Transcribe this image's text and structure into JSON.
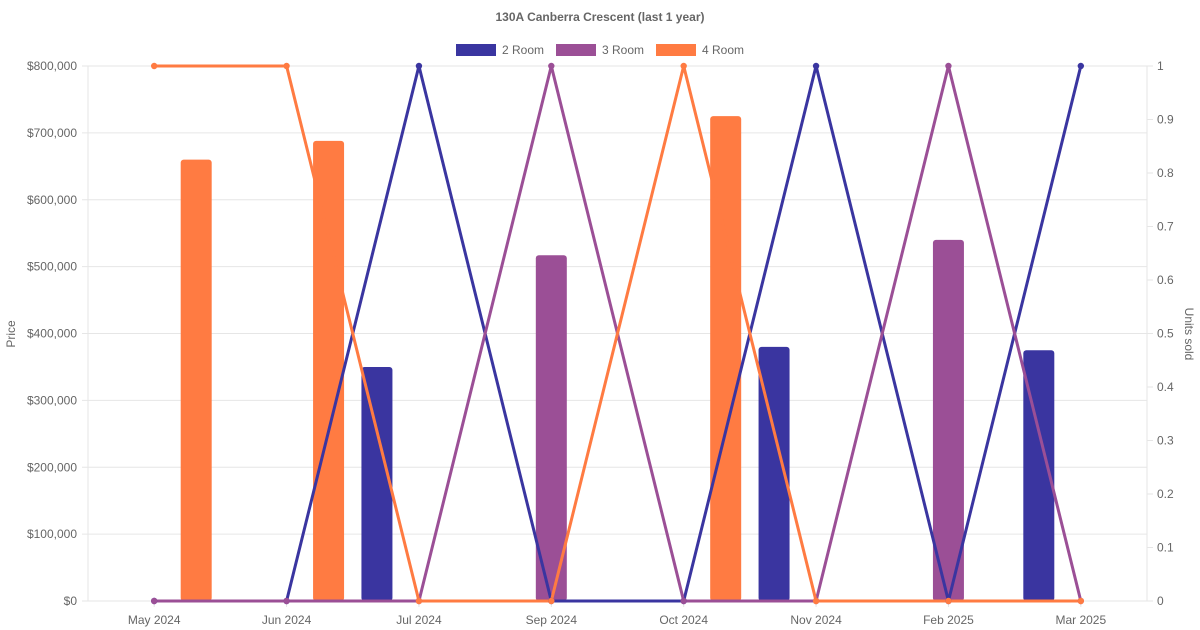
{
  "chart_data": {
    "type": "bar",
    "title": "130A Canberra Crescent (last 1 year)",
    "categories": [
      "May 2024",
      "Jun 2024",
      "Jul 2024",
      "Sep 2024",
      "Oct 2024",
      "Nov 2024",
      "Feb 2025",
      "Mar 2025"
    ],
    "y_left": {
      "label": "Price",
      "ylim": [
        0,
        800000
      ],
      "ticks": [
        0,
        100000,
        200000,
        300000,
        400000,
        500000,
        600000,
        700000,
        800000
      ],
      "tick_labels": [
        "$0",
        "$100,000",
        "$200,000",
        "$300,000",
        "$400,000",
        "$500,000",
        "$600,000",
        "$700,000",
        "$800,000"
      ]
    },
    "y_right": {
      "label": "Units sold",
      "ylim": [
        0,
        1
      ],
      "ticks": [
        0,
        0.1,
        0.2,
        0.3,
        0.4,
        0.5,
        0.6,
        0.7,
        0.8,
        0.9,
        1
      ],
      "tick_labels": [
        "0",
        "0.1",
        "0.2",
        "0.3",
        "0.4",
        "0.5",
        "0.6",
        "0.7",
        "0.8",
        "0.9",
        "1"
      ]
    },
    "legend_position": "top-center",
    "grid": true,
    "series": [
      {
        "name": "2 Room",
        "color": "#3a35a0",
        "price": [
          null,
          null,
          350000,
          null,
          null,
          380000,
          null,
          375000
        ],
        "units_sold": [
          0,
          0,
          1,
          0,
          0,
          1,
          0,
          1
        ]
      },
      {
        "name": "3 Room",
        "color": "#9b4f96",
        "price": [
          null,
          null,
          null,
          517000,
          null,
          null,
          540000,
          null
        ],
        "units_sold": [
          0,
          0,
          0,
          1,
          0,
          0,
          1,
          0
        ]
      },
      {
        "name": "4 Room",
        "color": "#ff7b42",
        "price": [
          660000,
          688000,
          null,
          null,
          725000,
          null,
          null,
          null
        ],
        "units_sold": [
          1,
          1,
          0,
          0,
          1,
          0,
          0,
          0
        ]
      }
    ]
  }
}
